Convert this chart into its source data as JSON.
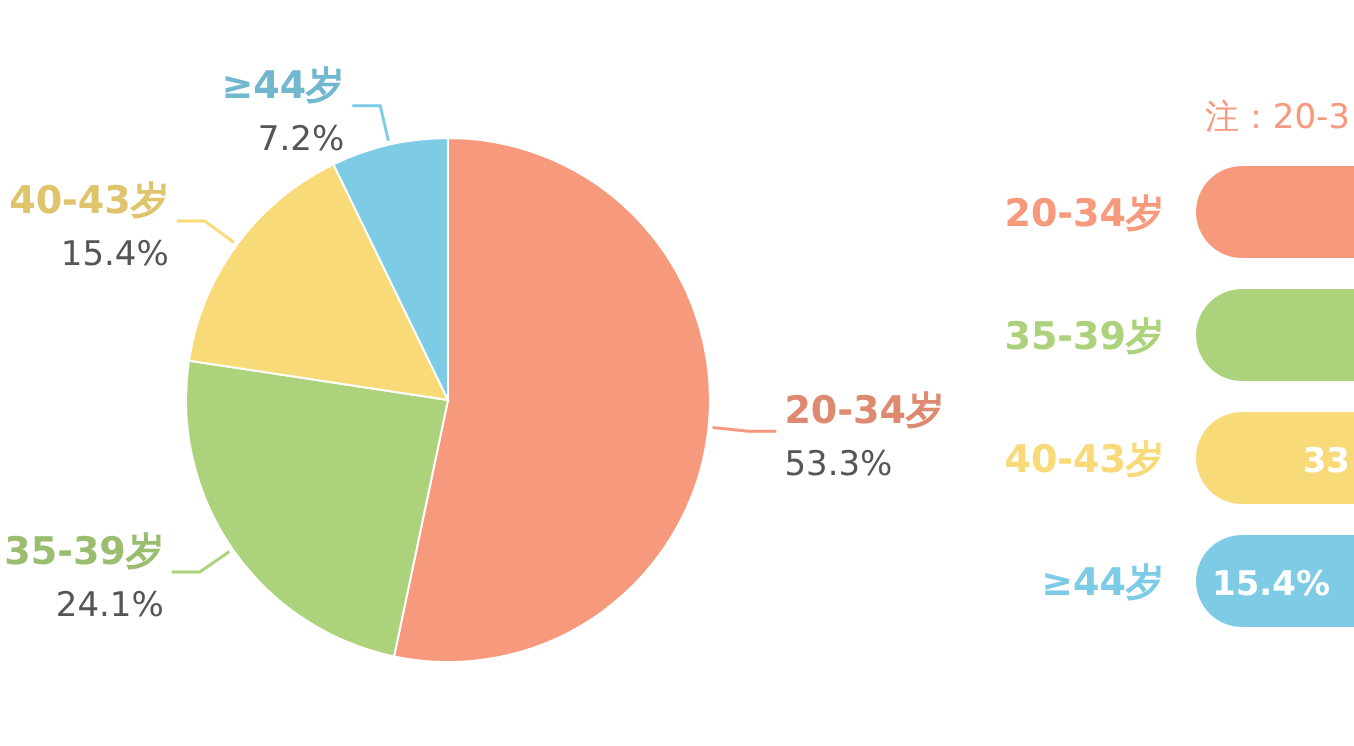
{
  "chart_data": [
    {
      "type": "pie",
      "categories": [
        "20-34岁",
        "35-39岁",
        "40-43岁",
        "≥44岁"
      ],
      "values": [
        53.3,
        24.1,
        15.4,
        7.2
      ],
      "colors": [
        "#f7997c",
        "#acd27c",
        "#f8da78",
        "#7ecbe5"
      ],
      "value_labels": [
        "53.3%",
        "24.1%",
        "15.4%",
        "7.2%"
      ]
    },
    {
      "type": "other",
      "title": "注：20-3",
      "categories": [
        "20-34岁",
        "35-39岁",
        "40-43岁",
        "≥44岁"
      ],
      "colors": [
        "#f7997c",
        "#acd27c",
        "#f8da78",
        "#7ecbe5"
      ],
      "value_labels": [
        null,
        null,
        "33",
        "15.4%"
      ]
    }
  ]
}
